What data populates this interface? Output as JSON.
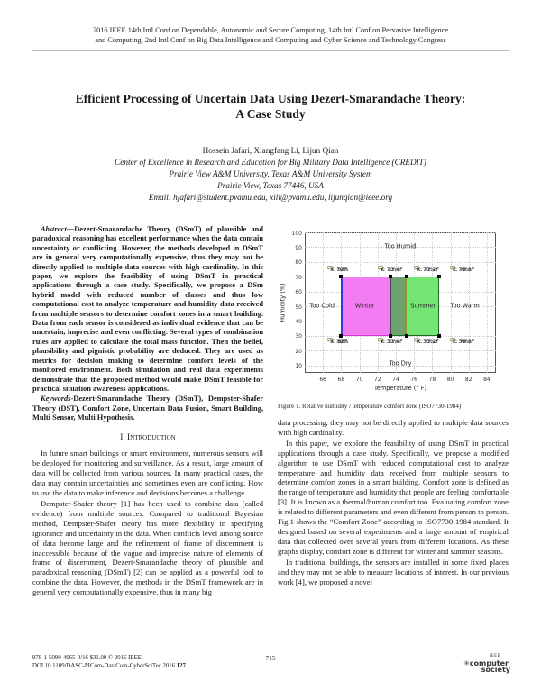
{
  "header": {
    "line1": "2016 IEEE 14th Intl Conf on Dependable, Autonomic and Secure Computing, 14th Intl Conf on Pervasive Intelligence",
    "line2": "and Computing, 2nd Intl Conf on Big Data Intelligence and Computing and Cyber Science and Technology Congress"
  },
  "title": {
    "line1": "Efficient Processing of Uncertain Data Using Dezert-Smarandache Theory:",
    "line2": "A Case Study"
  },
  "authors": {
    "names": "Hossein Jafari, Xiangfang Li, Lijun Qian",
    "affiliation1": "Center of Excellence in Research and Education for Big Military Data Intelligence (CREDIT)",
    "affiliation2": "Prairie View A&M University, Texas A&M University System",
    "affiliation3": "Prairie View, Texas 77446, USA",
    "email": "Email: hjafari@student.pvamu.edu, xili@pvamu.edu, lijunqian@ieee.org"
  },
  "left_column": {
    "abstract_label": "Abstract",
    "abstract_text": "—Dezert-Smarandache Theory (DSmT) of plausible and paradoxical reasoning has excellent performance when the data contain uncertainty or conflicting. However, the methods developed in DSmT are in general very computationally expensive, thus they may not be directly applied to multiple data sources with high cardinality. In this paper, we explore the feasibility of using DSmT in practical applications through a case study. Specifically, we propose a DSm hybrid model with reduced number of classes and thus low computational cost to analyze temperature and humidity data received from multiple sensors to determine comfort zones in a smart building. Data from each sensor is considered as individual evidence that can be uncertain, imprecise and even conflicting. Several types of combination rules are applied to calculate the total mass function. Then the belief, plausibility and pignistic probability are deduced. They are used as metrics for decision making to determine comfort levels of the monitored environment. Both simulation and real data experiments demonstrate that the proposed method would make DSmT feasible for practical situation awareness applications.",
    "keywords_label": "Keywords",
    "keywords_text": "-Dezert-Smarandache Theory (DSmT), Dempster-Shafer Theory (DST), Comfort Zone, Uncertain Data Fusion, Smart Building, Multi Sensor, Multi Hypothesis.",
    "section1_heading": "I. Introduction",
    "para1": "In future smart buildings or smart environment, numerous sensors will be deployed for monitoring and surveillance. As a result, large amount of data will be collected from various sources. In many practical cases, the data may contain uncertainties and sometimes even are conflicting. How to use the data to make inference and decisions becomes a challenge.",
    "para2": "Dempster-Shafer theory [1] has been used to combine data (called evidence) from multiple sources. Compared to traditional Bayesian method, Dempster-Shafer theory has more flexibility in specifying ignorance and uncertainty in the data. When conflicts level among source of data become large and the refinement of frame of discernment is inaccessible because of the vague and imprecise nature of elements of frame of discernment, Dezert-Smarandache theory of plausible and paradoxical reasoning (DSmT) [2] can be applied as a powerful tool to combine the data. However, the methods in the DSmT framework are in general very computationally expensive, thus in many big"
  },
  "right_column": {
    "figure_caption": "Figure 1.    Relative humidity / temperature comfort zone (ISO7730-1984)",
    "para1": "data processing, they may not be directly applied to multiple data sources with high cardinality.",
    "para2": "In this paper, we explore the feasibility of using DSmT in practical applications through a case study. Specifically, we propose a modified algorithm to use DSmT with reduced computational cost to analyze temperature and humidity data received from multiple sensors to determine comfort zones in a smart building. Comfort zone is defined as the range of temperature and humidity that people are feeling comfortable [3]. It is known as a thermal/human comfort too. Evaluating comfort zone is related to different parameters and even different from person to person. Fig.1 shows the “Comfort Zone” according to ISO7730-1984 standard. It designed based on several experiments and a large amount of empirical data that collected over several years from different locations. As these graphs display, comfort zone is different for winter and summer seasons.",
    "para3": "In traditional buildings, the sensors are installed in some fixed places and they may not be able to measure locations of interest. In our previous work [4], we proposed a novel"
  },
  "footer": {
    "copyright_line": "978-1-5090-4065-0/16 $31.00 © 2016 IEEE",
    "doi_prefix": "DOI 10.1109/DASC-PICom-DataCom-CyberSciTec.2016.",
    "doi_page_bold": "127",
    "page_number": "715",
    "logo_ieee": "IEEE",
    "logo_glyph": "✳",
    "logo_word1": "computer",
    "logo_word2": "society"
  },
  "chart_data": {
    "type": "area",
    "title": "",
    "xlabel": "Temperature (° F)",
    "ylabel": "Humidity (%)",
    "xlim": [
      64,
      85
    ],
    "ylim": [
      5,
      100
    ],
    "x_ticks": [
      66,
      68,
      70,
      72,
      74,
      76,
      78,
      80,
      82,
      84
    ],
    "y_ticks": [
      10,
      20,
      30,
      40,
      50,
      60,
      70,
      80,
      90,
      100
    ],
    "grid": true,
    "legend": "none",
    "zones": [
      {
        "name": "winter",
        "label": "Winter",
        "x": [
          68,
          75.2
        ],
        "y": [
          30,
          70
        ],
        "fill": "#f27df2"
      },
      {
        "name": "summer",
        "label": "Summer",
        "x": [
          73.4,
          78.8
        ],
        "y": [
          30,
          70
        ],
        "fill": "#74e574"
      },
      {
        "name": "overlap",
        "label": "",
        "x": [
          73.4,
          75.2
        ],
        "y": [
          30,
          70
        ],
        "fill": "#6da16d"
      }
    ],
    "region_labels": [
      {
        "text": "Too Humid",
        "x": 74.5,
        "y": 90
      },
      {
        "text": "Too Cold",
        "x": 65.9,
        "y": 50
      },
      {
        "text": "Winter",
        "x": 70.6,
        "y": 50
      },
      {
        "text": "Summer",
        "x": 77.0,
        "y": 50
      },
      {
        "text": "Too Warm",
        "x": 81.6,
        "y": 50
      },
      {
        "text": "Too Dry",
        "x": 74.5,
        "y": 11
      }
    ],
    "markers": [
      [
        68,
        70
      ],
      [
        73.4,
        70
      ],
      [
        75.2,
        70
      ],
      [
        78.8,
        70
      ],
      [
        68,
        30
      ],
      [
        73.4,
        30
      ],
      [
        75.2,
        30
      ],
      [
        78.8,
        30
      ]
    ],
    "datatips": [
      {
        "row": "top",
        "cx": 66.8,
        "lines": [
          "X: 68F",
          "Y: 70%"
        ]
      },
      {
        "row": "top",
        "cx": 72.3,
        "lines": [
          "X: 73.4F",
          "Y: 70%"
        ]
      },
      {
        "row": "top",
        "cx": 76.3,
        "lines": [
          "X: 75.2F",
          "Y: 70%"
        ]
      },
      {
        "row": "top",
        "cx": 80.2,
        "lines": [
          "X: 78.8F",
          "Y: 70%"
        ]
      },
      {
        "row": "bottom",
        "cx": 66.8,
        "lines": [
          "X: 68F",
          "Y: 30%"
        ]
      },
      {
        "row": "bottom",
        "cx": 72.3,
        "lines": [
          "X: 73.4F",
          "Y: 30%"
        ]
      },
      {
        "row": "bottom",
        "cx": 76.3,
        "lines": [
          "X: 75.2F",
          "Y: 30%"
        ]
      },
      {
        "row": "bottom",
        "cx": 80.2,
        "lines": [
          "X: 78.8F",
          "Y: 30%"
        ]
      }
    ]
  }
}
